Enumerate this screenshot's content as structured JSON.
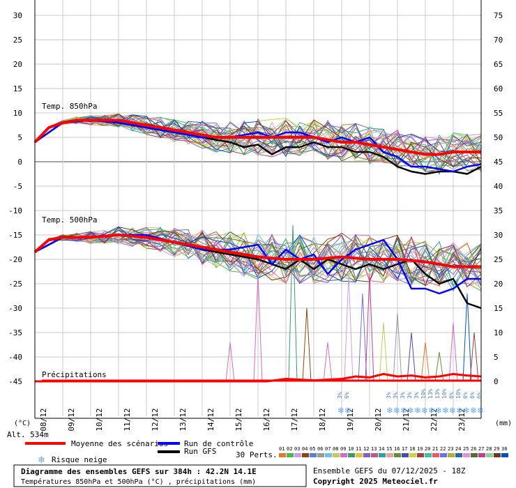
{
  "header": {
    "title": "Diagramme des ensembles GEFS sur 384h : 42.2N 14.1E",
    "subtitle": "Températures 850hPa et 500hPa (°C) , précipitations (mm)",
    "run_info": "Ensemble GEFS du 07/12/2025 - 18Z",
    "copyright": "Copyright 2025 Meteociel.fr"
  },
  "legend": {
    "mean_label": "Moyenne des scénarios",
    "control_label": "Run de contrôle",
    "gfs_label": "Run GFS",
    "snow_label": "Risque neige",
    "perts_label": "30 Perts.",
    "pert_numbers": [
      "01",
      "02",
      "03",
      "04",
      "05",
      "06",
      "07",
      "08",
      "09",
      "10",
      "11",
      "12",
      "13",
      "14",
      "15",
      "16",
      "17",
      "18",
      "19",
      "20",
      "21",
      "22",
      "23",
      "24",
      "25",
      "26",
      "27",
      "28",
      "29",
      "30"
    ],
    "pert_colors": [
      "#e07a2a",
      "#4cb84c",
      "#c8a0e8",
      "#8b4513",
      "#5d7fc8",
      "#9a9a9a",
      "#70c0e0",
      "#c8c85a",
      "#d070c0",
      "#3a9a6a",
      "#e8c040",
      "#8060c0",
      "#b85a8a",
      "#30a0a0",
      "#e8a0a0",
      "#6a8a3a",
      "#4a4ab0",
      "#d0d040",
      "#a04040",
      "#40c0a0",
      "#e06060",
      "#7070e0",
      "#b0b040",
      "#2a6aa0",
      "#e090e0",
      "#507030",
      "#c04090",
      "#90d090",
      "#6a3a1a",
      "#0050c0"
    ]
  },
  "labels": {
    "temp850": "Temp. 850hPa",
    "temp500": "Temp. 500hPa",
    "precip": "Précipitations",
    "left_unit": "(°C)",
    "right_unit": "(mm)",
    "altitude": "Alt. 534m"
  },
  "chart_data": {
    "type": "line",
    "x_dates": [
      "08/12",
      "09/12",
      "10/12",
      "11/12",
      "12/12",
      "13/12",
      "14/12",
      "15/12",
      "16/12",
      "17/12",
      "18/12",
      "19/12",
      "20/12",
      "21/12",
      "22/12",
      "23/12"
    ],
    "left_axis_ticks": [
      30,
      25,
      20,
      15,
      10,
      5,
      0,
      -5,
      -10,
      -15,
      -20,
      -25,
      -30,
      -35,
      -40,
      -45
    ],
    "right_axis_ticks": [
      75,
      70,
      65,
      60,
      55,
      50,
      45,
      40,
      35,
      30,
      25,
      20,
      15,
      10,
      5,
      0
    ],
    "left_ylim": [
      -45,
      30
    ],
    "right_ylim": [
      0,
      75
    ],
    "hours_range": [
      0,
      384
    ],
    "mean_850": [
      {
        "h": 0,
        "v": 4
      },
      {
        "h": 12,
        "v": 7
      },
      {
        "h": 24,
        "v": 8
      },
      {
        "h": 36,
        "v": 8.5
      },
      {
        "h": 48,
        "v": 8.5
      },
      {
        "h": 60,
        "v": 8.5
      },
      {
        "h": 72,
        "v": 8.5
      },
      {
        "h": 84,
        "v": 8
      },
      {
        "h": 96,
        "v": 7.5
      },
      {
        "h": 108,
        "v": 7
      },
      {
        "h": 120,
        "v": 6.5
      },
      {
        "h": 132,
        "v": 6
      },
      {
        "h": 144,
        "v": 5.5
      },
      {
        "h": 156,
        "v": 5
      },
      {
        "h": 168,
        "v": 5
      },
      {
        "h": 180,
        "v": 5
      },
      {
        "h": 192,
        "v": 5
      },
      {
        "h": 204,
        "v": 5
      },
      {
        "h": 216,
        "v": 5
      },
      {
        "h": 228,
        "v": 5
      },
      {
        "h": 240,
        "v": 5
      },
      {
        "h": 252,
        "v": 4.5
      },
      {
        "h": 264,
        "v": 4
      },
      {
        "h": 276,
        "v": 4
      },
      {
        "h": 288,
        "v": 3.5
      },
      {
        "h": 300,
        "v": 3
      },
      {
        "h": 312,
        "v": 2.5
      },
      {
        "h": 324,
        "v": 2
      },
      {
        "h": 336,
        "v": 1.5
      },
      {
        "h": 348,
        "v": 1.5
      },
      {
        "h": 360,
        "v": 2
      },
      {
        "h": 372,
        "v": 2
      },
      {
        "h": 384,
        "v": 2
      }
    ],
    "control_850": [
      {
        "h": 0,
        "v": 4
      },
      {
        "h": 24,
        "v": 8
      },
      {
        "h": 48,
        "v": 8.5
      },
      {
        "h": 72,
        "v": 8
      },
      {
        "h": 96,
        "v": 7
      },
      {
        "h": 120,
        "v": 6
      },
      {
        "h": 144,
        "v": 5
      },
      {
        "h": 168,
        "v": 5
      },
      {
        "h": 192,
        "v": 6
      },
      {
        "h": 204,
        "v": 5
      },
      {
        "h": 216,
        "v": 6
      },
      {
        "h": 228,
        "v": 6
      },
      {
        "h": 240,
        "v": 5
      },
      {
        "h": 252,
        "v": 4
      },
      {
        "h": 264,
        "v": 5
      },
      {
        "h": 276,
        "v": 4
      },
      {
        "h": 288,
        "v": 5
      },
      {
        "h": 300,
        "v": 2
      },
      {
        "h": 312,
        "v": 1
      },
      {
        "h": 324,
        "v": -1
      },
      {
        "h": 336,
        "v": -1
      },
      {
        "h": 348,
        "v": -1.5
      },
      {
        "h": 360,
        "v": -2
      },
      {
        "h": 372,
        "v": -1
      },
      {
        "h": 384,
        "v": -0.5
      }
    ],
    "gfs_850": [
      {
        "h": 0,
        "v": 4
      },
      {
        "h": 24,
        "v": 8
      },
      {
        "h": 48,
        "v": 8.5
      },
      {
        "h": 72,
        "v": 8
      },
      {
        "h": 96,
        "v": 7
      },
      {
        "h": 120,
        "v": 6
      },
      {
        "h": 144,
        "v": 5
      },
      {
        "h": 168,
        "v": 4
      },
      {
        "h": 180,
        "v": 3
      },
      {
        "h": 192,
        "v": 3.5
      },
      {
        "h": 204,
        "v": 1.5
      },
      {
        "h": 216,
        "v": 3
      },
      {
        "h": 228,
        "v": 3
      },
      {
        "h": 240,
        "v": 4
      },
      {
        "h": 252,
        "v": 3
      },
      {
        "h": 264,
        "v": 3
      },
      {
        "h": 276,
        "v": 2
      },
      {
        "h": 288,
        "v": 2
      },
      {
        "h": 300,
        "v": 1
      },
      {
        "h": 312,
        "v": -1
      },
      {
        "h": 324,
        "v": -2
      },
      {
        "h": 336,
        "v": -2.5
      },
      {
        "h": 348,
        "v": -2
      },
      {
        "h": 360,
        "v": -2
      },
      {
        "h": 372,
        "v": -2.5
      },
      {
        "h": 384,
        "v": -1
      }
    ],
    "mean_500": [
      {
        "h": 0,
        "v": -18.5
      },
      {
        "h": 12,
        "v": -16
      },
      {
        "h": 24,
        "v": -15.5
      },
      {
        "h": 48,
        "v": -15.5
      },
      {
        "h": 72,
        "v": -15
      },
      {
        "h": 96,
        "v": -15.5
      },
      {
        "h": 120,
        "v": -16.5
      },
      {
        "h": 144,
        "v": -17.5
      },
      {
        "h": 168,
        "v": -18.5
      },
      {
        "h": 192,
        "v": -19.5
      },
      {
        "h": 216,
        "v": -20
      },
      {
        "h": 240,
        "v": -20
      },
      {
        "h": 264,
        "v": -19.5
      },
      {
        "h": 288,
        "v": -20
      },
      {
        "h": 312,
        "v": -20
      },
      {
        "h": 336,
        "v": -20.5
      },
      {
        "h": 348,
        "v": -21
      },
      {
        "h": 360,
        "v": -21.5
      },
      {
        "h": 384,
        "v": -21.5
      }
    ],
    "control_500": [
      {
        "h": 0,
        "v": -18.5
      },
      {
        "h": 24,
        "v": -15.5
      },
      {
        "h": 48,
        "v": -15.5
      },
      {
        "h": 72,
        "v": -15
      },
      {
        "h": 96,
        "v": -15
      },
      {
        "h": 120,
        "v": -16.5
      },
      {
        "h": 144,
        "v": -18
      },
      {
        "h": 168,
        "v": -18
      },
      {
        "h": 192,
        "v": -17
      },
      {
        "h": 204,
        "v": -21
      },
      {
        "h": 216,
        "v": -18
      },
      {
        "h": 228,
        "v": -20
      },
      {
        "h": 240,
        "v": -19
      },
      {
        "h": 252,
        "v": -23
      },
      {
        "h": 264,
        "v": -20
      },
      {
        "h": 276,
        "v": -18
      },
      {
        "h": 288,
        "v": -17
      },
      {
        "h": 300,
        "v": -16
      },
      {
        "h": 312,
        "v": -20
      },
      {
        "h": 324,
        "v": -26
      },
      {
        "h": 336,
        "v": -26
      },
      {
        "h": 348,
        "v": -27
      },
      {
        "h": 360,
        "v": -26
      },
      {
        "h": 372,
        "v": -24
      },
      {
        "h": 384,
        "v": -24
      }
    ],
    "gfs_500": [
      {
        "h": 0,
        "v": -18.5
      },
      {
        "h": 24,
        "v": -15.5
      },
      {
        "h": 48,
        "v": -15.5
      },
      {
        "h": 72,
        "v": -15
      },
      {
        "h": 96,
        "v": -15.5
      },
      {
        "h": 120,
        "v": -16.5
      },
      {
        "h": 144,
        "v": -18
      },
      {
        "h": 168,
        "v": -19
      },
      {
        "h": 192,
        "v": -20
      },
      {
        "h": 216,
        "v": -22
      },
      {
        "h": 228,
        "v": -20
      },
      {
        "h": 240,
        "v": -22
      },
      {
        "h": 252,
        "v": -20
      },
      {
        "h": 264,
        "v": -21
      },
      {
        "h": 276,
        "v": -22
      },
      {
        "h": 288,
        "v": -21
      },
      {
        "h": 300,
        "v": -22
      },
      {
        "h": 312,
        "v": -21
      },
      {
        "h": 324,
        "v": -20
      },
      {
        "h": 336,
        "v": -23
      },
      {
        "h": 348,
        "v": -25
      },
      {
        "h": 360,
        "v": -24
      },
      {
        "h": 372,
        "v": -29
      },
      {
        "h": 384,
        "v": -30
      }
    ],
    "precip_mean": [
      {
        "h": 0,
        "v": 0
      },
      {
        "h": 200,
        "v": 0
      },
      {
        "h": 216,
        "v": 0.5
      },
      {
        "h": 240,
        "v": 0.2
      },
      {
        "h": 264,
        "v": 0.5
      },
      {
        "h": 276,
        "v": 1
      },
      {
        "h": 288,
        "v": 0.8
      },
      {
        "h": 300,
        "v": 1.5
      },
      {
        "h": 312,
        "v": 1
      },
      {
        "h": 324,
        "v": 1.2
      },
      {
        "h": 336,
        "v": 0.8
      },
      {
        "h": 348,
        "v": 1
      },
      {
        "h": 360,
        "v": 1.5
      },
      {
        "h": 372,
        "v": 1.2
      },
      {
        "h": 384,
        "v": 1
      }
    ],
    "precip_spikes": [
      {
        "h": 168,
        "v": 8,
        "c": "#d070c0"
      },
      {
        "h": 192,
        "v": 22,
        "c": "#d070c0"
      },
      {
        "h": 222,
        "v": 32,
        "c": "#3a9a6a"
      },
      {
        "h": 234,
        "v": 15,
        "c": "#8b4513"
      },
      {
        "h": 252,
        "v": 8,
        "c": "#d070c0"
      },
      {
        "h": 270,
        "v": 22,
        "c": "#c8a0e8"
      },
      {
        "h": 282,
        "v": 18,
        "c": "#7070e0"
      },
      {
        "h": 288,
        "v": 22,
        "c": "#c04090"
      },
      {
        "h": 300,
        "v": 12,
        "c": "#c8c85a"
      },
      {
        "h": 312,
        "v": 14,
        "c": "#9a9a9a"
      },
      {
        "h": 324,
        "v": 10,
        "c": "#4a4ab0"
      },
      {
        "h": 336,
        "v": 8,
        "c": "#e07a2a"
      },
      {
        "h": 348,
        "v": 6,
        "c": "#6a8a3a"
      },
      {
        "h": 360,
        "v": 12,
        "c": "#d070c0"
      },
      {
        "h": 372,
        "v": 18,
        "c": "#0050c0"
      },
      {
        "h": 378,
        "v": 10,
        "c": "#a04040"
      }
    ],
    "snow_risk": [
      {
        "h": 264,
        "label": "3%"
      },
      {
        "h": 270,
        "label": "6%"
      },
      {
        "h": 306,
        "label": "3%"
      },
      {
        "h": 312,
        "label": "3%"
      },
      {
        "h": 318,
        "label": "3%"
      },
      {
        "h": 324,
        "label": "3%"
      },
      {
        "h": 330,
        "label": "3%"
      },
      {
        "h": 336,
        "label": "10%"
      },
      {
        "h": 342,
        "label": "13%"
      },
      {
        "h": 348,
        "label": "13%"
      },
      {
        "h": 354,
        "label": "10%"
      },
      {
        "h": 360,
        "label": "6%"
      },
      {
        "h": 366,
        "label": "10%"
      },
      {
        "h": 372,
        "label": "6%"
      },
      {
        "h": 378,
        "label": "6%"
      },
      {
        "h": 384,
        "label": "6%"
      }
    ],
    "colors": {
      "mean": "#ff0000",
      "control": "#0000ff",
      "gfs": "#000000",
      "grid": "#c8c8c8",
      "snow": "#66aaff"
    }
  }
}
